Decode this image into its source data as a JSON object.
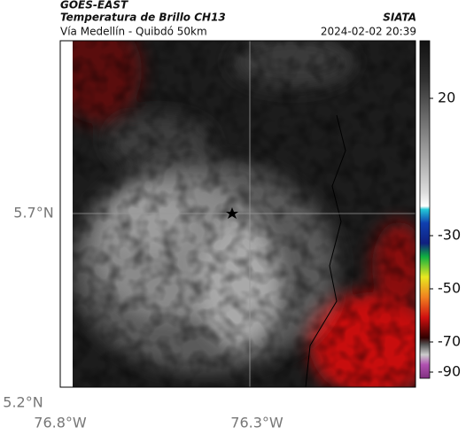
{
  "header": {
    "source": "GOES-EAST",
    "title": "Temperatura de Brillo CH13",
    "org": "SIATA",
    "subtitle": "Vía Medellín - Quibdó 50km",
    "datetime": "2024-02-02 20:39"
  },
  "map": {
    "lat_labels": [
      "5.7°N",
      "5.2°N"
    ],
    "lon_labels": [
      "76.8°W",
      "76.3°W"
    ]
  },
  "colorbar": {
    "ticks": [
      20,
      -30,
      -50,
      -70,
      -90
    ]
  }
}
